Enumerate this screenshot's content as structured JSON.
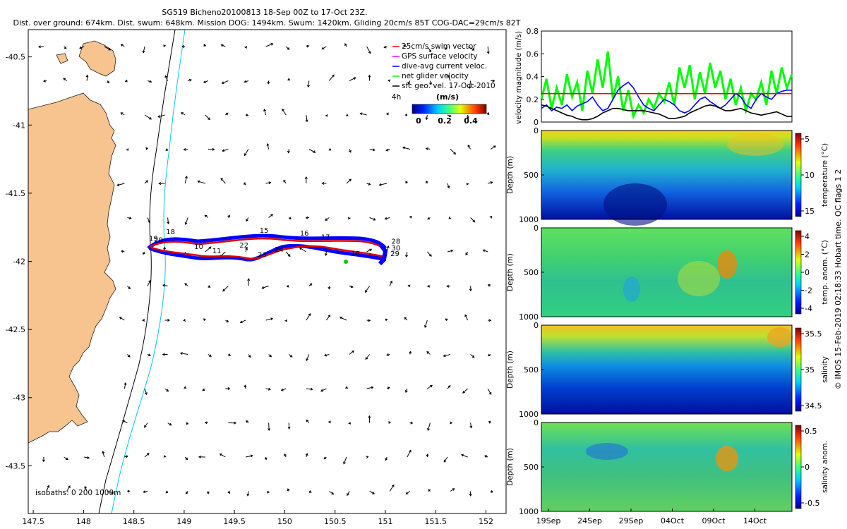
{
  "header": {
    "line1": "SG519 Bicheno20100813 18-Sep 00Z to 17-Oct 23Z.",
    "line2": "Dist. over ground: 674km. Dist. swum: 648km. Mission DOG: 1494km. Swum: 1420km. Gliding 20cm/s 85T COG-DAC=29cm/s 82T"
  },
  "side_note": "© IMOS 15-Feb-2019 02:18:33 Hobart time. QC flags 1  2",
  "colors": {
    "land": "#f7c38f",
    "red": "#ff0000",
    "blue": "#0000ff",
    "green": "#00ff00",
    "magenta": "#ff00ff",
    "cyan": "#00e0ff"
  },
  "chart_data": [
    {
      "id": "map",
      "type": "scatter",
      "xlim": [
        147.45,
        152.2
      ],
      "ylim": [
        -43.85,
        -40.3
      ],
      "xticks": [
        "147.5",
        "148",
        "148.5",
        "149",
        "149.5",
        "150",
        "150.5",
        "151",
        "151.5",
        "152"
      ],
      "yticks": [
        "-40.5",
        "-41",
        "-41.5",
        "-42",
        "-42.5",
        "-43",
        "-43.5"
      ],
      "legend": [
        {
          "label": "25cm/s swim vector",
          "color": "#ff0000"
        },
        {
          "label": "GPS surface velocity",
          "color": "#ff00ff"
        },
        {
          "label": "dive-avg current veloc.",
          "color": "#0000ff"
        },
        {
          "label": "net glider velocity",
          "color": "#00ff00"
        },
        {
          "label": "sfc geo. vel. 17-Oct-2010",
          "color": "#000000"
        }
      ],
      "legend_position": "top-right",
      "track_note": "4h",
      "colorbar": {
        "unit": "(m/s)",
        "ticks": [
          "0",
          "0.2",
          "0.4"
        ],
        "range": [
          0,
          0.5
        ]
      },
      "isobaths_label": "isobaths: 0   200  1000m",
      "day_labels": [
        {
          "text": "18",
          "lon": 148.82,
          "lat": -41.8
        },
        {
          "text": "19",
          "lon": 148.65,
          "lat": -41.85
        },
        {
          "text": "20",
          "lon": 148.7,
          "lat": -41.86
        },
        {
          "text": "10",
          "lon": 149.1,
          "lat": -41.91
        },
        {
          "text": "11",
          "lon": 149.28,
          "lat": -41.94
        },
        {
          "text": "22",
          "lon": 149.55,
          "lat": -41.9
        },
        {
          "text": "23",
          "lon": 149.73,
          "lat": -41.97
        },
        {
          "text": "24",
          "lon": 149.9,
          "lat": -41.93
        },
        {
          "text": "15",
          "lon": 149.75,
          "lat": -41.79
        },
        {
          "text": "16",
          "lon": 150.15,
          "lat": -41.81
        },
        {
          "text": "17",
          "lon": 150.36,
          "lat": -41.84
        },
        {
          "text": "18",
          "lon": 150.66,
          "lat": -41.96
        },
        {
          "text": "28",
          "lon": 151.06,
          "lat": -41.87
        },
        {
          "text": "30",
          "lon": 151.06,
          "lat": -41.92
        },
        {
          "text": "29",
          "lon": 151.05,
          "lat": -41.96
        }
      ]
    },
    {
      "id": "velocity",
      "type": "line",
      "ylabel": "velocity magnitude (m/s)",
      "ylim": [
        0,
        0.8
      ],
      "yticks": [
        "0",
        "0.2",
        "0.4",
        "0.6",
        "0.8"
      ],
      "series": [
        {
          "color": "#00ff00",
          "values": [
            0.2,
            0.38,
            0.12,
            0.3,
            0.15,
            0.42,
            0.22,
            0.35,
            0.1,
            0.45,
            0.25,
            0.55,
            0.3,
            0.62,
            0.2,
            0.4,
            0.1,
            0.28,
            0.05,
            0.15,
            0.08,
            0.2,
            0.12,
            0.25,
            0.18,
            0.35,
            0.15,
            0.48,
            0.3,
            0.5,
            0.2,
            0.44,
            0.25,
            0.52,
            0.3,
            0.45,
            0.2,
            0.38,
            0.15,
            0.3,
            0.1,
            0.25,
            0.2,
            0.35,
            0.15,
            0.45,
            0.25,
            0.48,
            0.3,
            0.42
          ]
        },
        {
          "color": "#0000ff",
          "values": [
            0.12,
            0.15,
            0.1,
            0.13,
            0.12,
            0.15,
            0.1,
            0.14,
            0.16,
            0.18,
            0.22,
            0.15,
            0.1,
            0.12,
            0.2,
            0.28,
            0.32,
            0.35,
            0.3,
            0.22,
            0.15,
            0.12,
            0.1,
            0.15,
            0.2,
            0.18,
            0.15,
            0.1,
            0.08,
            0.1,
            0.15,
            0.2,
            0.22,
            0.18,
            0.15,
            0.12,
            0.15,
            0.2,
            0.25,
            0.22,
            0.15,
            0.12,
            0.2,
            0.25,
            0.22,
            0.2,
            0.25,
            0.27,
            0.28,
            0.28
          ]
        },
        {
          "color": "#ff0000",
          "values": [
            0.25,
            0.25,
            0.25,
            0.25,
            0.25,
            0.25,
            0.25,
            0.25,
            0.25,
            0.25,
            0.25,
            0.25,
            0.25,
            0.25,
            0.25,
            0.25,
            0.25,
            0.25,
            0.25,
            0.25,
            0.25,
            0.25,
            0.25,
            0.25,
            0.25,
            0.25,
            0.25,
            0.25,
            0.25,
            0.25,
            0.25,
            0.25,
            0.25,
            0.25,
            0.25,
            0.25,
            0.25,
            0.25,
            0.25,
            0.25,
            0.25,
            0.25,
            0.25,
            0.25,
            0.25,
            0.25,
            0.25,
            0.25,
            0.25,
            0.25
          ]
        },
        {
          "color": "#000000",
          "values": [
            0.15,
            0.14,
            0.12,
            0.1,
            0.08,
            0.06,
            0.05,
            0.03,
            0.02,
            0.02,
            0.03,
            0.05,
            0.08,
            0.1,
            0.12,
            0.12,
            0.11,
            0.1,
            0.1,
            0.1,
            0.1,
            0.09,
            0.08,
            0.07,
            0.05,
            0.03,
            0.03,
            0.04,
            0.05,
            0.08,
            0.1,
            0.12,
            0.14,
            0.15,
            0.14,
            0.12,
            0.1,
            0.1,
            0.11,
            0.12,
            0.1,
            0.08,
            0.07,
            0.06,
            0.07,
            0.08,
            0.09,
            0.07,
            0.05,
            0.05
          ]
        }
      ]
    },
    {
      "id": "temperature",
      "type": "heatmap",
      "ylabel": "Depth (m)",
      "yticks": [
        "0",
        "500",
        "1000"
      ],
      "cbar_label": "temperature (°C)",
      "cbar_ticks": [
        "5",
        "10",
        "15"
      ]
    },
    {
      "id": "temp_anom",
      "type": "heatmap",
      "ylabel": "Depth (m)",
      "yticks": [
        "0",
        "500",
        "1000"
      ],
      "cbar_label": "temp. anom. (°C)",
      "cbar_ticks": [
        "4",
        "2",
        "0",
        "-2",
        "-4"
      ]
    },
    {
      "id": "salinity",
      "type": "heatmap",
      "ylabel": "Depth (m)",
      "yticks": [
        "0",
        "500",
        "1000"
      ],
      "cbar_label": "salinity",
      "cbar_ticks": [
        "35.5",
        "35",
        "34.5"
      ]
    },
    {
      "id": "sal_anom",
      "type": "heatmap",
      "ylabel": "Depth (m)",
      "yticks": [
        "0",
        "500",
        "1000"
      ],
      "cbar_label": "salinity anom.",
      "cbar_ticks": [
        "0.5",
        "0",
        "-0.5"
      ],
      "xticks": [
        "19Sep",
        "24Sep",
        "29Sep",
        "04Oct",
        "09Oct",
        "14Oct"
      ]
    }
  ]
}
